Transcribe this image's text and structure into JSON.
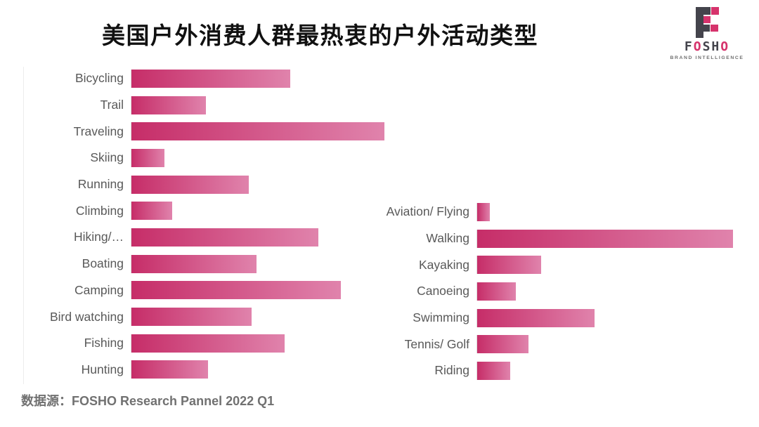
{
  "title": "美国户外消费人群最热衷的户外活动类型",
  "source": "数据源：FOSHO Research Pannel 2022 Q1",
  "logo": {
    "letters": [
      {
        "ch": "F",
        "tone": "dark"
      },
      {
        "ch": "O",
        "tone": "pink"
      },
      {
        "ch": "S",
        "tone": "dark"
      },
      {
        "ch": "H",
        "tone": "dark"
      },
      {
        "ch": "O",
        "tone": "pink"
      }
    ],
    "tagline": "BRAND INTELLIGENCE"
  },
  "colors": {
    "bar_gradient_start": "#c62d68",
    "bar_gradient_end": "#e083ac",
    "axis": "#dcdcdc",
    "label": "#595959",
    "title": "#111111",
    "source_text": "#717171",
    "logo_pink": "#d6336c",
    "logo_dark": "#44444c"
  },
  "chart_data": [
    {
      "type": "bar",
      "orientation": "horizontal",
      "panel": "left",
      "title": "",
      "xlabel": "",
      "ylabel": "",
      "axis_labels_shown": false,
      "units": "relative bar length (no numeric axis shown), max=100",
      "categories": [
        "Bicycling",
        "Trail",
        "Traveling",
        "Skiing",
        "Running",
        "Climbing",
        "Hiking/…",
        "Boating",
        "Camping",
        "Bird watching",
        "Fishing",
        "Hunting"
      ],
      "values": [
        62,
        29,
        99,
        13,
        46,
        16,
        73,
        49,
        82,
        47,
        60,
        30
      ]
    },
    {
      "type": "bar",
      "orientation": "horizontal",
      "panel": "right",
      "title": "",
      "xlabel": "",
      "ylabel": "",
      "axis_labels_shown": false,
      "units": "relative bar length (no numeric axis shown), max=100",
      "categories": [
        "Aviation/ Flying",
        "Walking",
        "Kayaking",
        "Canoeing",
        "Swimming",
        "Tennis/ Golf",
        "Riding"
      ],
      "values": [
        5,
        100,
        25,
        15,
        46,
        20,
        13
      ]
    }
  ]
}
